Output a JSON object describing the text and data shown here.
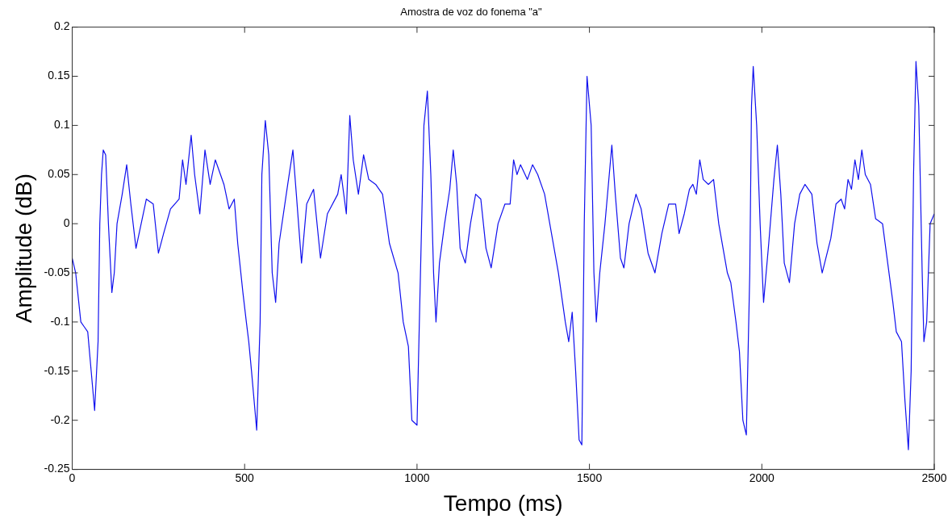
{
  "chart_data": {
    "type": "line",
    "title": "Amostra de voz do fonema \"a\"",
    "xlabel": "Tempo (ms)",
    "ylabel": "Amplitude (dB)",
    "xlim": [
      0,
      2500
    ],
    "xticks": [
      0,
      500,
      1000,
      1500,
      2000,
      2500
    ],
    "ylim": [
      -0.25,
      0.2
    ],
    "yticks": [
      -0.25,
      -0.2,
      -0.15,
      -0.1,
      -0.05,
      0,
      0.05,
      0.1,
      0.15,
      0.2
    ],
    "grid": false,
    "legend": false,
    "marker": "none",
    "line_style": "solid",
    "x": [
      0,
      10,
      25,
      35,
      45,
      55,
      65,
      75,
      80,
      85,
      90,
      97,
      105,
      115,
      122,
      130,
      145,
      158,
      170,
      185,
      200,
      215,
      235,
      250,
      265,
      285,
      310,
      320,
      330,
      345,
      355,
      370,
      385,
      400,
      415,
      440,
      455,
      470,
      480,
      495,
      505,
      512,
      520,
      535,
      545,
      550,
      560,
      570,
      580,
      590,
      600,
      625,
      640,
      650,
      665,
      680,
      700,
      720,
      740,
      770,
      780,
      795,
      805,
      815,
      830,
      845,
      860,
      880,
      900,
      920,
      945,
      960,
      975,
      985,
      1000,
      1010,
      1020,
      1030,
      1040,
      1048,
      1055,
      1065,
      1080,
      1095,
      1105,
      1115,
      1125,
      1140,
      1155,
      1170,
      1185,
      1200,
      1215,
      1235,
      1255,
      1270,
      1280,
      1290,
      1300,
      1320,
      1335,
      1350,
      1370,
      1390,
      1410,
      1430,
      1440,
      1450,
      1460,
      1470,
      1478,
      1485,
      1493,
      1505,
      1513,
      1520,
      1530,
      1545,
      1555,
      1565,
      1575,
      1590,
      1600,
      1615,
      1635,
      1650,
      1670,
      1690,
      1710,
      1730,
      1750,
      1760,
      1775,
      1790,
      1800,
      1810,
      1820,
      1830,
      1845,
      1860,
      1875,
      1900,
      1910,
      1925,
      1935,
      1945,
      1955,
      1965,
      1970,
      1975,
      1985,
      1995,
      2005,
      2020,
      2035,
      2045,
      2055,
      2065,
      2080,
      2095,
      2110,
      2125,
      2145,
      2160,
      2175,
      2200,
      2215,
      2230,
      2240,
      2250,
      2260,
      2270,
      2280,
      2290,
      2300,
      2315,
      2330,
      2350,
      2365,
      2380,
      2390,
      2405,
      2415,
      2425,
      2433,
      2440,
      2447,
      2455,
      2465,
      2470,
      2478,
      2488,
      2500
    ],
    "series": [
      {
        "color": "#1010ee",
        "values": [
          -0.035,
          -0.05,
          -0.1,
          -0.105,
          -0.11,
          -0.15,
          -0.19,
          -0.12,
          0.0,
          0.05,
          0.075,
          0.07,
          0,
          -0.07,
          -0.05,
          0.0,
          0.03,
          0.06,
          0.02,
          -0.025,
          0.0,
          0.025,
          0.02,
          -0.03,
          -0.01,
          0.015,
          0.025,
          0.065,
          0.04,
          0.09,
          0.05,
          0.01,
          0.075,
          0.04,
          0.065,
          0.04,
          0.015,
          0.025,
          -0.02,
          -0.07,
          -0.1,
          -0.12,
          -0.15,
          -0.21,
          -0.1,
          0.05,
          0.105,
          0.07,
          -0.05,
          -0.08,
          -0.02,
          0.04,
          0.075,
          0.03,
          -0.04,
          0.02,
          0.035,
          -0.035,
          0.01,
          0.03,
          0.05,
          0.01,
          0.11,
          0.065,
          0.03,
          0.07,
          0.045,
          0.04,
          0.03,
          -0.02,
          -0.05,
          -0.1,
          -0.125,
          -0.2,
          -0.205,
          -0.05,
          0.1,
          0.135,
          0.05,
          -0.05,
          -0.1,
          -0.04,
          0.0,
          0.035,
          0.075,
          0.04,
          -0.025,
          -0.04,
          0.0,
          0.03,
          0.025,
          -0.025,
          -0.045,
          0.0,
          0.02,
          0.02,
          0.065,
          0.05,
          0.06,
          0.045,
          0.06,
          0.05,
          0.03,
          -0.01,
          -0.05,
          -0.1,
          -0.12,
          -0.09,
          -0.15,
          -0.22,
          -0.225,
          0.0,
          0.15,
          0.1,
          -0.05,
          -0.1,
          -0.05,
          0.0,
          0.04,
          0.08,
          0.03,
          -0.035,
          -0.045,
          0.0,
          0.03,
          0.015,
          -0.03,
          -0.05,
          -0.01,
          0.02,
          0.02,
          -0.01,
          0.01,
          0.035,
          0.04,
          0.03,
          0.065,
          0.045,
          0.04,
          0.045,
          0.0,
          -0.05,
          -0.06,
          -0.1,
          -0.13,
          -0.2,
          -0.215,
          -0.05,
          0.12,
          0.16,
          0.1,
          0.0,
          -0.08,
          -0.02,
          0.045,
          0.08,
          0.03,
          -0.04,
          -0.06,
          0.0,
          0.03,
          0.04,
          0.03,
          -0.02,
          -0.05,
          -0.015,
          0.02,
          0.025,
          0.015,
          0.045,
          0.035,
          0.065,
          0.045,
          0.075,
          0.05,
          0.04,
          0.005,
          0.0,
          -0.04,
          -0.08,
          -0.11,
          -0.12,
          -0.18,
          -0.23,
          -0.15,
          0.05,
          0.165,
          0.12,
          -0.05,
          -0.12,
          -0.1,
          0.0,
          0.01
        ]
      }
    ]
  }
}
